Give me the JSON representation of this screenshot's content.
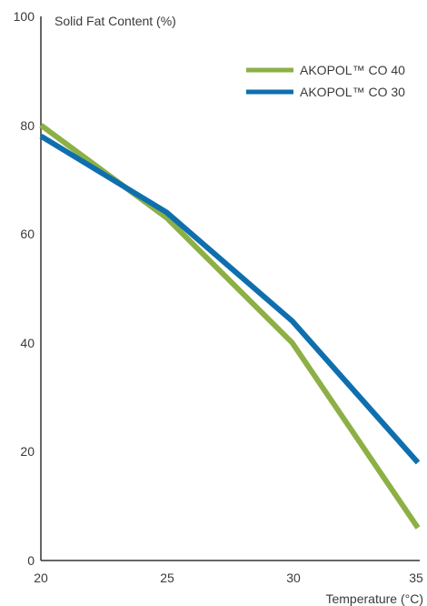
{
  "chart_data": {
    "type": "line",
    "ylabel": "Solid Fat Content (%)",
    "xlabel": "Temperature (°C)",
    "x": [
      20,
      25,
      30,
      35
    ],
    "xlim": [
      20,
      35
    ],
    "ylim": [
      0,
      100
    ],
    "x_ticks": [
      "20",
      "25",
      "30",
      "35"
    ],
    "y_ticks": [
      "0",
      "20",
      "40",
      "60",
      "80",
      "100"
    ],
    "legend_position": "top-right",
    "grid": false,
    "series": [
      {
        "name": "AKOPOL™ CO 40",
        "color": "#8db046",
        "values": [
          80,
          63,
          40,
          6
        ]
      },
      {
        "name": "AKOPOL™ CO 30",
        "color": "#0f6fae",
        "values": [
          78,
          64,
          44,
          18
        ]
      }
    ]
  }
}
